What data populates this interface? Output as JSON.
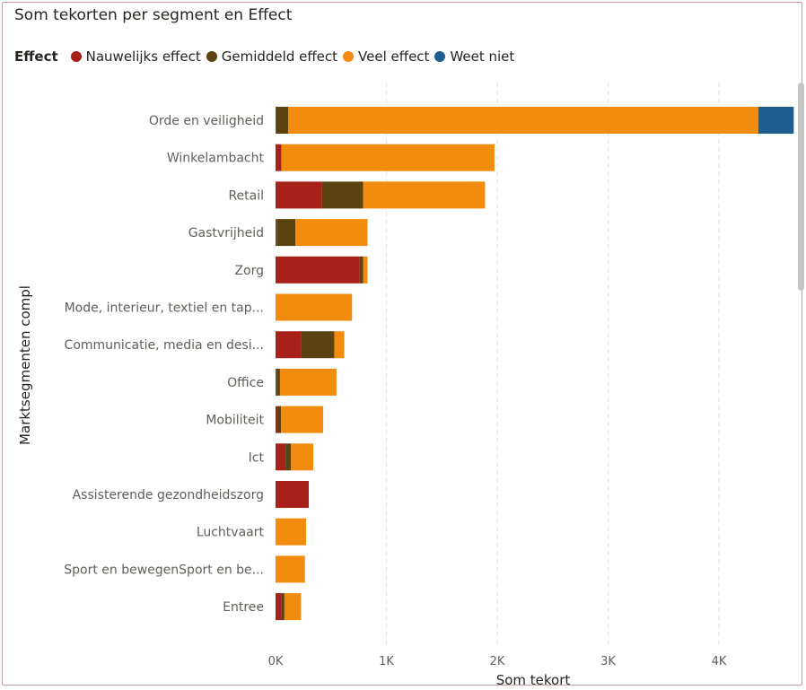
{
  "chart_data": {
    "type": "bar",
    "orientation": "horizontal",
    "stacked": true,
    "title": "Som tekorten per segment en Effect",
    "legend_title": "Effect",
    "legend_position": "top-left",
    "xlabel": "Som tekort",
    "ylabel": "Marktsegmenten compl",
    "xlim": [
      0,
      4700
    ],
    "xticks": [
      0,
      1000,
      2000,
      3000,
      4000
    ],
    "xtick_labels": [
      "0K",
      "1K",
      "2K",
      "3K",
      "4K"
    ],
    "grid": "vertical dashed",
    "categories": [
      "Orde en veiligheid",
      "Winkelambacht",
      "Retail",
      "Gastvrijheid",
      "Zorg",
      "Mode, interieur, textiel en tap...",
      "Communicatie, media en desi...",
      "Office",
      "Mobiliteit",
      "Ict",
      "Assisterende gezondheidszorg",
      "Luchtvaart",
      "Sport en bewegenSport en be...",
      "Entree"
    ],
    "series": [
      {
        "name": "Nauwelijks effect",
        "color": "#a8201a",
        "values": [
          5,
          50,
          420,
          10,
          760,
          0,
          230,
          10,
          20,
          90,
          300,
          0,
          0,
          50
        ]
      },
      {
        "name": "Gemiddeld effect",
        "color": "#5c4210",
        "values": [
          110,
          5,
          370,
          170,
          30,
          0,
          300,
          30,
          30,
          50,
          0,
          0,
          0,
          30
        ]
      },
      {
        "name": "Veel effect",
        "color": "#f28c0f",
        "values": [
          4240,
          1920,
          1100,
          650,
          40,
          690,
          90,
          510,
          380,
          200,
          0,
          275,
          265,
          150
        ]
      },
      {
        "name": "Weet niet",
        "color": "#1f5e91",
        "values": [
          320,
          0,
          0,
          0,
          0,
          0,
          0,
          0,
          0,
          0,
          0,
          0,
          0,
          0
        ]
      }
    ]
  }
}
